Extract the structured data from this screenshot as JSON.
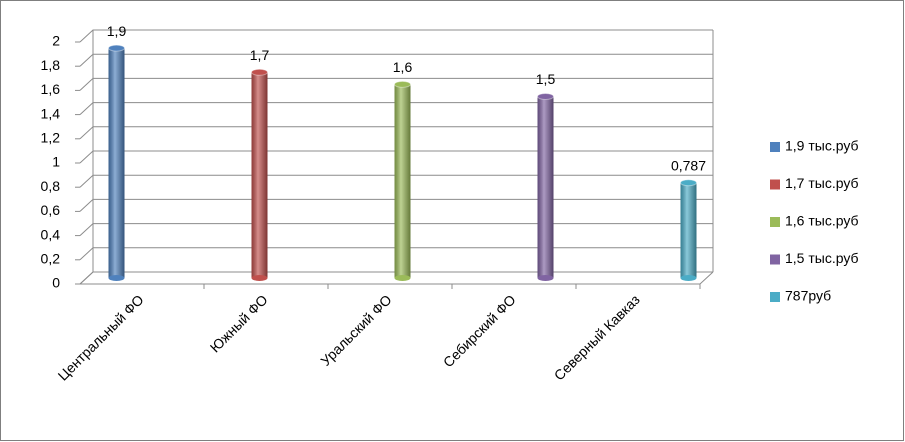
{
  "chart_data": {
    "type": "bar",
    "categories": [
      "Центральный ФО",
      "Южный ФО",
      "Уральский ФО",
      "Себирский ФО",
      "Северный Кавказ"
    ],
    "series": [
      {
        "name": "1,9 тыс.руб",
        "color": "#4f81bd",
        "values": [
          1.9,
          null,
          null,
          null,
          null
        ],
        "value_labels": [
          "1,9",
          null,
          null,
          null,
          null
        ]
      },
      {
        "name": "1,7 тыс.руб",
        "color": "#c0504d",
        "values": [
          null,
          1.7,
          null,
          null,
          null
        ],
        "value_labels": [
          null,
          "1,7",
          null,
          null,
          null
        ]
      },
      {
        "name": "1,6 тыс.руб",
        "color": "#9bbb59",
        "values": [
          null,
          null,
          1.6,
          null,
          null
        ],
        "value_labels": [
          null,
          null,
          "1,6",
          null,
          null
        ]
      },
      {
        "name": "1,5 тыс.руб",
        "color": "#8064a2",
        "values": [
          null,
          null,
          null,
          1.5,
          null
        ],
        "value_labels": [
          null,
          null,
          null,
          "1,5",
          null
        ]
      },
      {
        "name": "787руб",
        "color": "#4bacc6",
        "values": [
          null,
          null,
          null,
          null,
          0.787
        ],
        "value_labels": [
          null,
          null,
          null,
          null,
          "0,787"
        ]
      }
    ],
    "ylim": [
      0,
      2
    ],
    "yticks": [
      0,
      {
        "value": 0.2,
        "label": "0,2"
      },
      {
        "value": 0.4,
        "label": "0,4"
      },
      {
        "value": 0.6,
        "label": "0,6"
      },
      {
        "value": 0.8,
        "label": "0,8"
      },
      1,
      {
        "value": 1.2,
        "label": "1,2"
      },
      {
        "value": 1.4,
        "label": "1,4"
      },
      {
        "value": 1.6,
        "label": "1,6"
      },
      {
        "value": 1.8,
        "label": "1,8"
      },
      2
    ],
    "grid": true,
    "legend": "right"
  }
}
